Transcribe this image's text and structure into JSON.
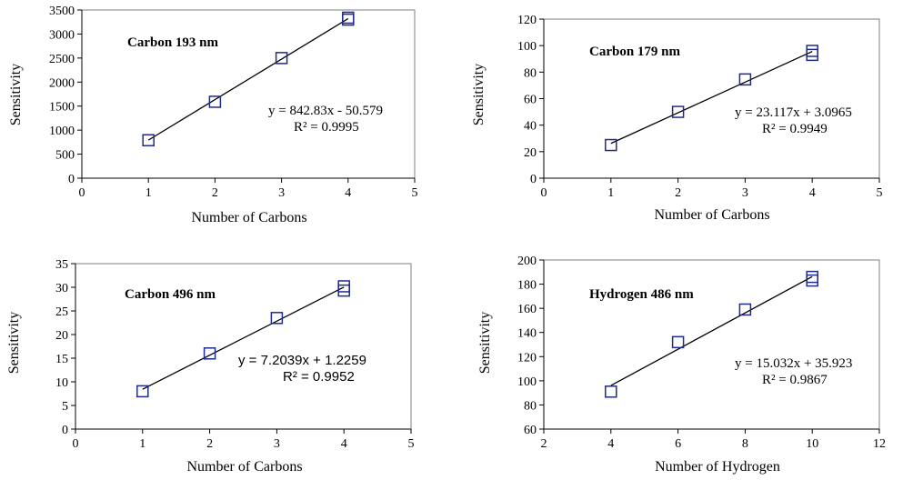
{
  "chart_data": [
    {
      "type": "scatter",
      "title": "Carbon 193 nm",
      "xlabel": "Number of Carbons",
      "ylabel": "Sensitivity",
      "xlim": [
        0,
        5
      ],
      "ylim": [
        0,
        3500
      ],
      "xticks": [
        "0",
        "1",
        "2",
        "3",
        "4",
        "5"
      ],
      "yticks": [
        "0",
        "500",
        "1000",
        "1500",
        "2000",
        "2500",
        "3000",
        "3500"
      ],
      "points": [
        [
          1,
          790
        ],
        [
          2,
          1590
        ],
        [
          3,
          2500
        ],
        [
          4,
          3300
        ],
        [
          4,
          3340
        ]
      ],
      "trendline": {
        "slope": 842.83,
        "intercept": -50.579
      },
      "equation": "y = 842.83x - 50.579",
      "r2": "R² = 0.9995"
    },
    {
      "type": "scatter",
      "title": "Carbon 179 nm",
      "xlabel": "Number of Carbons",
      "ylabel": "Sensitivity",
      "xlim": [
        0,
        5
      ],
      "ylim": [
        0,
        120
      ],
      "xticks": [
        "0",
        "1",
        "2",
        "3",
        "4",
        "5"
      ],
      "yticks": [
        "0",
        "20",
        "40",
        "60",
        "80",
        "100",
        "120"
      ],
      "points": [
        [
          1,
          25
        ],
        [
          2,
          50
        ],
        [
          3,
          74.5
        ],
        [
          4,
          93
        ],
        [
          4,
          96
        ]
      ],
      "trendline": {
        "slope": 23.117,
        "intercept": 3.0965
      },
      "equation": "y = 23.117x + 3.0965",
      "r2": "R² = 0.9949"
    },
    {
      "type": "scatter",
      "title": "Carbon 496 nm",
      "xlabel": "Number of Carbons",
      "ylabel": "Sensitivity",
      "xlim": [
        0,
        5
      ],
      "ylim": [
        0,
        35
      ],
      "xticks": [
        "0",
        "1",
        "2",
        "3",
        "4",
        "5"
      ],
      "yticks": [
        "0",
        "5",
        "10",
        "15",
        "20",
        "25",
        "30",
        "35"
      ],
      "points": [
        [
          1,
          8
        ],
        [
          2,
          16
        ],
        [
          3,
          23.5
        ],
        [
          4,
          29.3
        ],
        [
          4,
          30.2
        ]
      ],
      "trendline": {
        "slope": 7.2039,
        "intercept": 1.2259
      },
      "equation": "y = 7.2039x + 1.2259",
      "r2": "R² = 0.9952"
    },
    {
      "type": "scatter",
      "title": "Hydrogen 486 nm",
      "xlabel": "Number of Hydrogen",
      "ylabel": "Sensitivity",
      "xlim": [
        2,
        12
      ],
      "ylim": [
        60,
        200
      ],
      "xticks": [
        "2",
        "4",
        "6",
        "8",
        "10",
        "12"
      ],
      "yticks": [
        "60",
        "80",
        "100",
        "120",
        "140",
        "160",
        "180",
        "200"
      ],
      "points": [
        [
          4,
          91
        ],
        [
          6,
          132
        ],
        [
          8,
          159
        ],
        [
          10,
          183
        ],
        [
          10,
          186
        ]
      ],
      "trendline": {
        "slope": 15.032,
        "intercept": 35.923
      },
      "equation": "y = 15.032x + 35.923",
      "r2": "R² = 0.9867"
    }
  ]
}
